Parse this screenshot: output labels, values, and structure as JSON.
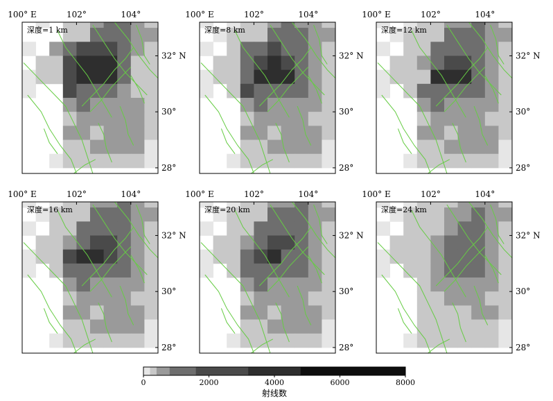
{
  "chart_data": {
    "type": "heatmap",
    "layout": "2x3 small multiples",
    "x_ticks": [
      "100° E",
      "102°",
      "104°"
    ],
    "x_tick_values": [
      100,
      102,
      104
    ],
    "y_ticks": [
      "32° N",
      "30°",
      "28°"
    ],
    "y_tick_values": [
      32,
      30,
      28
    ],
    "xlim": [
      100,
      105
    ],
    "ylim": [
      27.8,
      33.2
    ],
    "cell_size_deg": 0.5,
    "grid_x0": 100,
    "grid_y0": 28,
    "fault_color": "#66cc44",
    "colorbar": {
      "ticks": [
        "0",
        "2000",
        "4000",
        "6000",
        "8000"
      ],
      "tick_values": [
        0,
        2000,
        4000,
        6000,
        8000
      ],
      "range": [
        0,
        8000
      ],
      "label": "射线数",
      "bins": [
        0,
        200,
        400,
        800,
        1600,
        3200,
        4800,
        8000
      ],
      "bin_colors": [
        "#e6e6e6",
        "#c8c8c8",
        "#9a9a9a",
        "#6e6e6e",
        "#4a4a4a",
        "#2e2e2e",
        "#0e0e0e"
      ]
    },
    "panels": [
      {
        "label": "深度=1 km",
        "rows": [
          "....2222222..",
          "...22333222..",
          ".1.223443211.",
          "...224443322.",
          "1.3455543221.",
          ".22566642211.",
          "122566642231.",
          "1..544432221.",
          "...34333321..",
          "...23333321..",
          "...3323332...",
          "...2233331...",
          "..1222222111."
        ]
      },
      {
        "label": "深度=8 km",
        "rows": [
          "....2222222..",
          "...22333222..",
          "1.1223433211.",
          ".12224443322.",
          "1.2445443221.",
          ".22456543211.",
          "122466643221.",
          "1.2544443221.",
          "...34333321..",
          "...23333221..",
          "...3323332...",
          "...2233331...",
          "..1222222111."
        ]
      },
      {
        "label": "深度=12 km",
        "rows": [
          "....2222222..",
          "...22333222..",
          "1.1223343211.",
          ".12224443322.",
          "1.2244443221.",
          ".22345543211.",
          "122266643221.",
          "1.2444443221.",
          "...34333321..",
          "...23333221..",
          "...3323332...",
          "...2233331...",
          "..1222222111."
        ]
      },
      {
        "label": "深度=16 km",
        "rows": [
          "....2222222..",
          "...22333222..",
          "1.1223343211.",
          ".12224443322.",
          "1.2244443221.",
          ".22345543211.",
          "122566543221.",
          "1.2444443221.",
          "...34333321..",
          "...23333221..",
          "...3323332...",
          "...2233331...",
          "..1222222111."
        ]
      },
      {
        "label": "深度=20 km",
        "rows": [
          "....2222222..",
          "...22333222..",
          "1.1223343211.",
          ".12224443322.",
          "1.2244443221.",
          ".22345543211.",
          "122456443221.",
          "1.2444443221.",
          "...34333321..",
          "...23333221..",
          "...3323332...",
          "...2233331...",
          "..1222222111."
        ]
      },
      {
        "label": "深度=24 km",
        "rows": [
          "....2222222..",
          "...22333222..",
          "1.1222333211.",
          ".12223343322.",
          "1.2223443221.",
          ".22234443211.",
          "122234443221.",
          "1.2234443221.",
          "...23333321..",
          "...22333221..",
          "...2222332...",
          "...2222221...",
          "..1222222111."
        ]
      }
    ],
    "faults": [
      [
        [
          100.05,
          31.75
        ],
        [
          100.6,
          31.2
        ],
        [
          101.1,
          30.7
        ],
        [
          101.6,
          30.2
        ],
        [
          101.9,
          29.6
        ],
        [
          102.2,
          29.0
        ],
        [
          102.4,
          28.4
        ],
        [
          102.6,
          27.8
        ]
      ],
      [
        [
          100.2,
          30.6
        ],
        [
          100.7,
          30.0
        ],
        [
          101.0,
          29.4
        ],
        [
          101.4,
          28.8
        ],
        [
          101.8,
          28.3
        ],
        [
          102.0,
          27.8
        ]
      ],
      [
        [
          101.3,
          32.9
        ],
        [
          101.6,
          32.3
        ],
        [
          102.0,
          31.8
        ],
        [
          102.4,
          31.3
        ],
        [
          102.7,
          30.8
        ],
        [
          103.0,
          30.3
        ],
        [
          103.3,
          29.8
        ]
      ],
      [
        [
          102.6,
          33.1
        ],
        [
          103.0,
          32.5
        ],
        [
          103.4,
          31.9
        ],
        [
          103.8,
          31.4
        ],
        [
          104.2,
          31.0
        ],
        [
          104.6,
          30.6
        ]
      ],
      [
        [
          103.4,
          33.2
        ],
        [
          103.9,
          32.6
        ],
        [
          104.3,
          32.0
        ],
        [
          104.7,
          31.5
        ],
        [
          105.0,
          31.2
        ]
      ],
      [
        [
          104.2,
          33.1
        ],
        [
          104.4,
          32.6
        ],
        [
          104.5,
          32.0
        ],
        [
          104.7,
          31.7
        ]
      ],
      [
        [
          102.2,
          30.2
        ],
        [
          102.6,
          30.6
        ],
        [
          103.0,
          31.0
        ],
        [
          103.4,
          31.5
        ],
        [
          103.8,
          31.9
        ],
        [
          104.1,
          32.3
        ]
      ],
      [
        [
          102.5,
          30.0
        ],
        [
          102.9,
          30.4
        ],
        [
          103.3,
          30.9
        ],
        [
          103.7,
          31.3
        ],
        [
          104.0,
          31.6
        ]
      ],
      [
        [
          102.8,
          29.6
        ],
        [
          103.0,
          29.2
        ],
        [
          103.1,
          28.7
        ],
        [
          103.3,
          28.2
        ]
      ],
      [
        [
          103.6,
          30.2
        ],
        [
          103.8,
          29.7
        ],
        [
          103.9,
          29.2
        ],
        [
          104.1,
          28.8
        ]
      ],
      [
        [
          104.0,
          31.3
        ],
        [
          104.3,
          30.8
        ],
        [
          104.5,
          30.3
        ]
      ],
      [
        [
          100.8,
          29.4
        ],
        [
          101.0,
          28.9
        ],
        [
          101.3,
          28.5
        ]
      ],
      [
        [
          101.9,
          27.8
        ],
        [
          102.3,
          28.1
        ],
        [
          102.7,
          28.3
        ]
      ]
    ]
  }
}
